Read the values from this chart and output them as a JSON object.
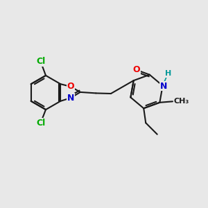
{
  "bg_color": "#e8e8e8",
  "bond_color": "#1a1a1a",
  "atom_colors": {
    "Cl": "#00aa00",
    "O": "#ee0000",
    "N": "#0000cc",
    "H": "#009999",
    "C": "#1a1a1a"
  },
  "bond_width": 1.5,
  "font_size_atoms": 9,
  "font_size_h": 8
}
